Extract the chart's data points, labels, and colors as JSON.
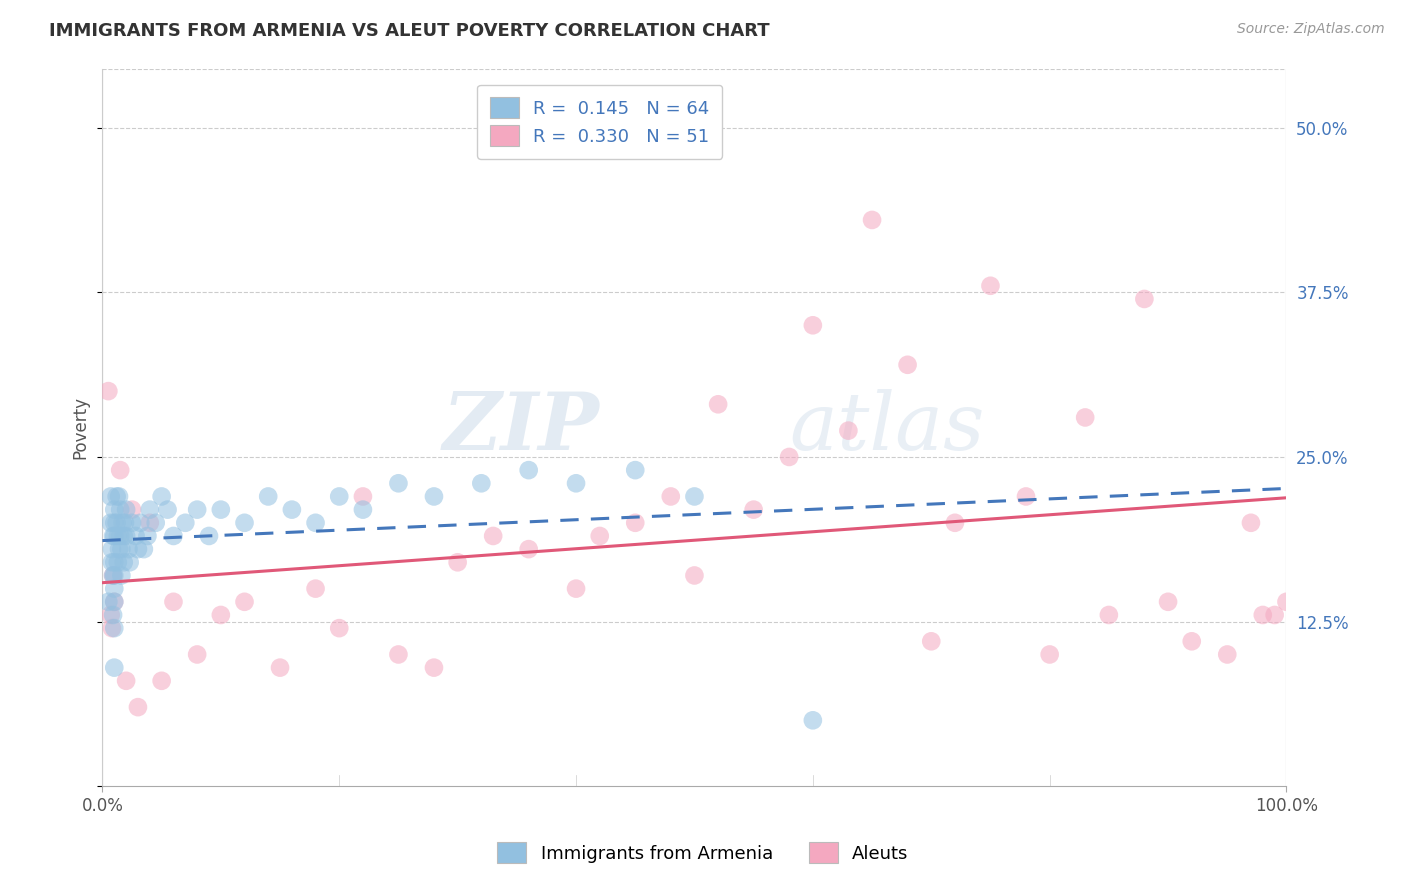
{
  "title": "IMMIGRANTS FROM ARMENIA VS ALEUT POVERTY CORRELATION CHART",
  "source_text": "Source: ZipAtlas.com",
  "ylabel": "Poverty",
  "xlim": [
    0.0,
    1.0
  ],
  "ylim": [
    0.0,
    0.545
  ],
  "x_ticks": [
    0.0,
    1.0
  ],
  "x_tick_labels": [
    "0.0%",
    "100.0%"
  ],
  "y_ticks": [
    0.0,
    0.125,
    0.25,
    0.375,
    0.5
  ],
  "y_tick_labels": [
    "",
    "12.5%",
    "25.0%",
    "37.5%",
    "50.0%"
  ],
  "legend_label_armenia": "R =  0.145   N = 64",
  "legend_label_aleut": "R =  0.330   N = 51",
  "watermark_zip": "ZIP",
  "watermark_atlas": "atlas",
  "armenia_color": "#92c0e0",
  "aleut_color": "#f4a8c0",
  "armenia_line_color": "#4477bb",
  "aleut_line_color": "#e05878",
  "background_color": "#ffffff",
  "grid_color": "#cccccc",
  "title_color": "#333333",
  "axis_label_color": "#555555",
  "tick_color_right": "#4477bb",
  "source_color": "#999999",
  "armenia_scatter_x": [
    0.005,
    0.007,
    0.007,
    0.008,
    0.008,
    0.009,
    0.009,
    0.009,
    0.01,
    0.01,
    0.01,
    0.01,
    0.01,
    0.01,
    0.01,
    0.01,
    0.01,
    0.012,
    0.012,
    0.013,
    0.013,
    0.014,
    0.014,
    0.015,
    0.015,
    0.016,
    0.016,
    0.017,
    0.018,
    0.018,
    0.019,
    0.02,
    0.02,
    0.022,
    0.023,
    0.025,
    0.028,
    0.03,
    0.032,
    0.035,
    0.038,
    0.04,
    0.045,
    0.05,
    0.055,
    0.06,
    0.07,
    0.08,
    0.09,
    0.1,
    0.12,
    0.14,
    0.16,
    0.18,
    0.2,
    0.22,
    0.25,
    0.28,
    0.32,
    0.36,
    0.4,
    0.45,
    0.5,
    0.6
  ],
  "armenia_scatter_y": [
    0.14,
    0.2,
    0.22,
    0.18,
    0.17,
    0.13,
    0.16,
    0.19,
    0.21,
    0.2,
    0.19,
    0.17,
    0.16,
    0.15,
    0.14,
    0.12,
    0.09,
    0.22,
    0.2,
    0.19,
    0.17,
    0.22,
    0.18,
    0.21,
    0.19,
    0.18,
    0.16,
    0.2,
    0.19,
    0.17,
    0.2,
    0.21,
    0.19,
    0.18,
    0.17,
    0.2,
    0.19,
    0.18,
    0.2,
    0.18,
    0.19,
    0.21,
    0.2,
    0.22,
    0.21,
    0.19,
    0.2,
    0.21,
    0.19,
    0.21,
    0.2,
    0.22,
    0.21,
    0.2,
    0.22,
    0.21,
    0.23,
    0.22,
    0.23,
    0.24,
    0.23,
    0.24,
    0.22,
    0.05
  ],
  "aleut_scatter_x": [
    0.005,
    0.007,
    0.008,
    0.009,
    0.01,
    0.015,
    0.02,
    0.025,
    0.03,
    0.04,
    0.05,
    0.06,
    0.08,
    0.1,
    0.12,
    0.15,
    0.18,
    0.2,
    0.22,
    0.25,
    0.28,
    0.3,
    0.33,
    0.36,
    0.4,
    0.42,
    0.45,
    0.48,
    0.5,
    0.52,
    0.55,
    0.58,
    0.6,
    0.63,
    0.65,
    0.68,
    0.7,
    0.72,
    0.75,
    0.78,
    0.8,
    0.83,
    0.85,
    0.88,
    0.9,
    0.92,
    0.95,
    0.97,
    0.98,
    0.99,
    1.0
  ],
  "aleut_scatter_y": [
    0.3,
    0.13,
    0.12,
    0.16,
    0.14,
    0.24,
    0.08,
    0.21,
    0.06,
    0.2,
    0.08,
    0.14,
    0.1,
    0.13,
    0.14,
    0.09,
    0.15,
    0.12,
    0.22,
    0.1,
    0.09,
    0.17,
    0.19,
    0.18,
    0.15,
    0.19,
    0.2,
    0.22,
    0.16,
    0.29,
    0.21,
    0.25,
    0.35,
    0.27,
    0.43,
    0.32,
    0.11,
    0.2,
    0.38,
    0.22,
    0.1,
    0.28,
    0.13,
    0.37,
    0.14,
    0.11,
    0.1,
    0.2,
    0.13,
    0.13,
    0.14
  ]
}
